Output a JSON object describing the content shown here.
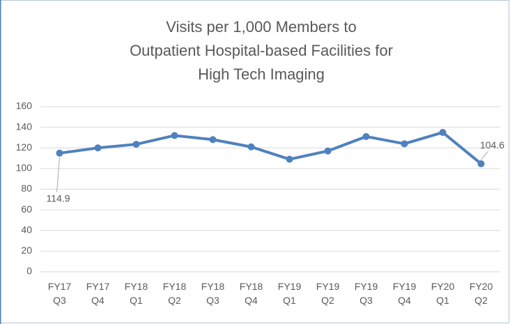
{
  "chart_data": {
    "type": "line",
    "title": [
      "Visits per 1,000 Members to",
      "Outpatient Hospital-based Facilities for",
      "High Tech Imaging"
    ],
    "categories": [
      "FY17 Q3",
      "FY17 Q4",
      "FY18 Q1",
      "FY18 Q2",
      "FY18 Q3",
      "FY18 Q4",
      "FY19 Q1",
      "FY19 Q2",
      "FY19 Q3",
      "FY19 Q4",
      "FY20 Q1",
      "FY20 Q2"
    ],
    "series": [
      {
        "name": "Visits per 1,000 Members",
        "color": "#4f81bd",
        "values": [
          114.9,
          120,
          123.5,
          132,
          128,
          121,
          109,
          117,
          131,
          124,
          135,
          104.6
        ],
        "value_labels": [
          "114.9",
          null,
          null,
          null,
          null,
          null,
          null,
          null,
          null,
          null,
          null,
          "104.6"
        ]
      }
    ],
    "ylim": [
      0,
      160
    ],
    "yticks": [
      0,
      20,
      40,
      60,
      80,
      100,
      120,
      140,
      160
    ],
    "grid": true
  }
}
